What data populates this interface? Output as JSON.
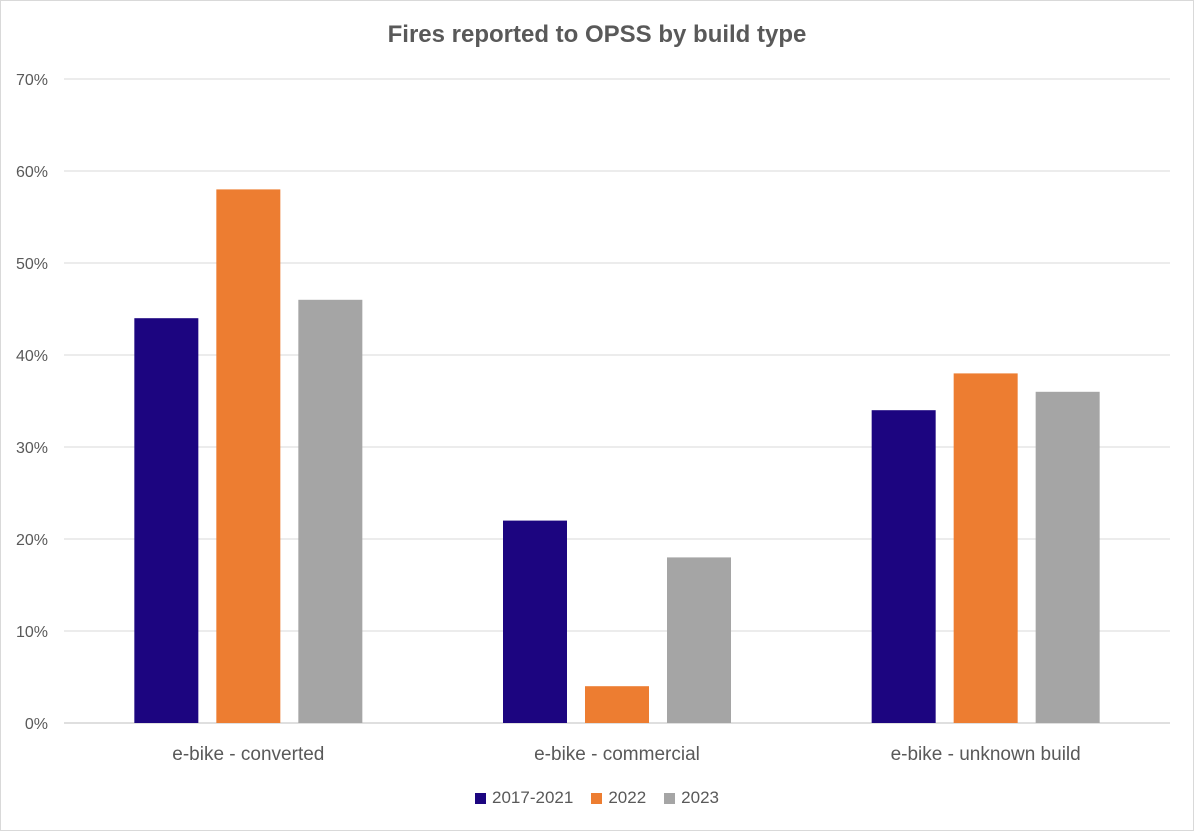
{
  "chart_data": {
    "type": "bar",
    "title": "Fires reported to OPSS by build type",
    "xlabel": "",
    "ylabel": "",
    "categories": [
      "e-bike - converted",
      "e-bike - commercial",
      "e-bike - unknown build"
    ],
    "series": [
      {
        "name": "2017-2021",
        "color": "#1c0580",
        "values": [
          44,
          22,
          34
        ]
      },
      {
        "name": "2022",
        "color": "#ed7d31",
        "values": [
          58,
          4,
          38
        ]
      },
      {
        "name": "2023",
        "color": "#a5a5a5",
        "values": [
          46,
          18,
          36
        ]
      }
    ],
    "ylim": [
      0,
      70
    ],
    "yticks": [
      0,
      10,
      20,
      30,
      40,
      50,
      60,
      70
    ],
    "ytick_labels": [
      "0%",
      "10%",
      "20%",
      "30%",
      "40%",
      "50%",
      "60%",
      "70%"
    ],
    "grid": true,
    "legend_position": "bottom"
  }
}
